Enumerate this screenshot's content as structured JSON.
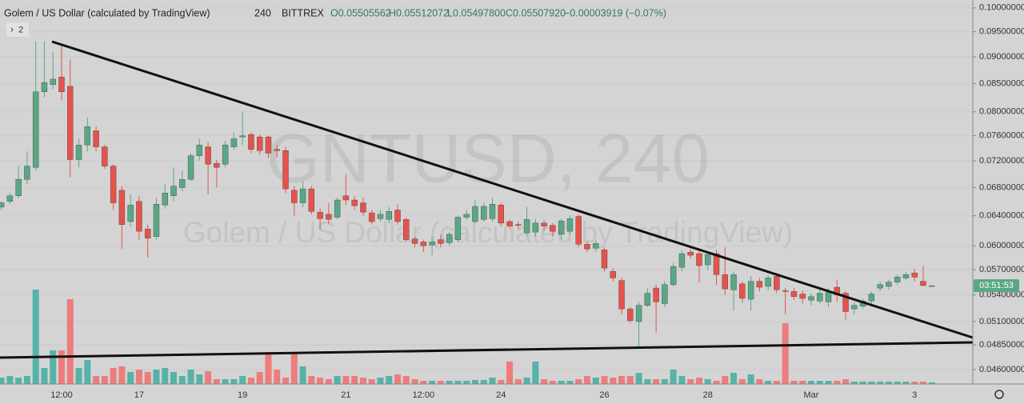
{
  "chart_data": {
    "type": "candlestick",
    "title": "Golem / US Dollar (calculated by TradingView)",
    "interval": "240",
    "exchange": "BITTREX",
    "ohlc_labels": [
      "O0.05505562",
      "H0.05512072",
      "L0.05497800",
      "C0.05507920"
    ],
    "change": "−0.00003919 (−0.07%)",
    "indicator_count": "2",
    "watermark": "GNTUSD, 240",
    "countdown": "03:51:53",
    "log_scale": true,
    "grid": true,
    "up_color": "#5aa785",
    "down_color": "#e5534b",
    "volume_up_color": "#55b3a8",
    "volume_down_color": "#ee7c7c",
    "ylim": [
      0.0446,
      0.1017
    ],
    "yticks": [
      {
        "value": 0.1,
        "label": "0.10000000"
      },
      {
        "value": 0.095,
        "label": "0.09500000"
      },
      {
        "value": 0.09,
        "label": "0.09000000"
      },
      {
        "value": 0.085,
        "label": "0.08500000"
      },
      {
        "value": 0.08,
        "label": "0.08000000"
      },
      {
        "value": 0.076,
        "label": "0.07600000"
      },
      {
        "value": 0.072,
        "label": "0.07200000"
      },
      {
        "value": 0.068,
        "label": "0.06800000"
      },
      {
        "value": 0.064,
        "label": "0.06400000"
      },
      {
        "value": 0.06,
        "label": "0.06000000"
      },
      {
        "value": 0.057,
        "label": "0.05700000"
      },
      {
        "value": 0.054,
        "label": "0.05400000"
      },
      {
        "value": 0.051,
        "label": "0.05100000"
      },
      {
        "value": 0.0485,
        "label": "0.04850000"
      },
      {
        "value": 0.046,
        "label": "0.04600000"
      }
    ],
    "categories": [
      null,
      null,
      null,
      null,
      null,
      null,
      null,
      "12:00",
      null,
      null,
      null,
      null,
      null,
      null,
      null,
      null,
      "17",
      null,
      null,
      null,
      null,
      null,
      null,
      null,
      null,
      null,
      null,
      null,
      "19",
      null,
      null,
      null,
      null,
      null,
      null,
      null,
      null,
      null,
      null,
      null,
      "21",
      null,
      null,
      null,
      null,
      null,
      null,
      null,
      null,
      "12:00",
      null,
      null,
      null,
      null,
      null,
      null,
      null,
      null,
      "24",
      null,
      null,
      null,
      null,
      null,
      null,
      null,
      null,
      null,
      null,
      null,
      "26",
      null,
      null,
      null,
      null,
      null,
      null,
      null,
      null,
      null,
      null,
      null,
      "28",
      null,
      null,
      null,
      null,
      null,
      null,
      null,
      null,
      null,
      null,
      null,
      "Mar",
      null,
      null,
      null,
      null,
      null,
      null,
      null,
      null,
      null,
      null,
      null,
      "3",
      null,
      null
    ],
    "open": [
      0.0652,
      0.066,
      0.0668,
      0.0692,
      0.071,
      0.0835,
      0.0848,
      0.0862,
      0.0845,
      0.0722,
      0.0745,
      0.0768,
      0.0742,
      0.0712,
      0.0676,
      0.0632,
      0.066,
      0.0622,
      0.0612,
      0.0655,
      0.0668,
      0.068,
      0.0692,
      0.0728,
      0.0742,
      0.0716,
      0.0715,
      0.0742,
      0.0758,
      0.0762,
      0.0758,
      0.0758,
      0.0738,
      0.0736,
      0.0676,
      0.0658,
      0.0678,
      0.0645,
      0.0642,
      0.0638,
      0.0668,
      0.0662,
      0.0658,
      0.0644,
      0.0636,
      0.0635,
      0.0648,
      0.0635,
      0.0609,
      0.0605,
      0.0601,
      0.0608,
      0.0604,
      0.0608,
      0.0638,
      0.0632,
      0.0635,
      0.0636,
      0.0655,
      0.0632,
      0.0628,
      0.0617,
      0.0618,
      0.063,
      0.0627,
      0.0615,
      0.0619,
      0.0639,
      0.0602,
      0.0597,
      0.0595,
      0.0568,
      0.0557,
      0.0524,
      0.051,
      0.0528,
      0.0548,
      0.053,
      0.0552,
      0.0573,
      0.0592,
      0.059,
      0.0576,
      0.059,
      0.0564,
      0.0546,
      0.0553,
      0.0535,
      0.0556,
      0.055,
      0.0562,
      0.0545,
      0.0544,
      0.0541,
      0.0534,
      0.0533,
      0.0532,
      0.0549,
      0.0542,
      0.0524,
      0.0527,
      0.0533,
      0.0548,
      0.055,
      0.0555,
      0.056,
      0.0566,
      0.0556,
      0.05505562
    ],
    "high": [
      0.066,
      0.0672,
      0.0712,
      0.0735,
      0.093,
      0.093,
      0.091,
      0.0925,
      0.0895,
      0.0755,
      0.079,
      0.0775,
      0.0745,
      0.0715,
      0.0682,
      0.067,
      0.0668,
      0.0628,
      0.0665,
      0.0685,
      0.071,
      0.0705,
      0.0732,
      0.0755,
      0.075,
      0.0722,
      0.0752,
      0.0765,
      0.08,
      0.0765,
      0.0762,
      0.076,
      0.0745,
      0.0742,
      0.0682,
      0.069,
      0.0682,
      0.065,
      0.0658,
      0.0665,
      0.07,
      0.0668,
      0.0665,
      0.0648,
      0.0648,
      0.0652,
      0.0656,
      0.0638,
      0.0612,
      0.0608,
      0.0612,
      0.0615,
      0.0618,
      0.064,
      0.0648,
      0.0662,
      0.0658,
      0.0665,
      0.0658,
      0.0635,
      0.0632,
      0.0652,
      0.0636,
      0.0634,
      0.063,
      0.0636,
      0.064,
      0.0642,
      0.0606,
      0.0607,
      0.0598,
      0.0572,
      0.056,
      0.0526,
      0.0532,
      0.0548,
      0.0552,
      0.0556,
      0.0578,
      0.0594,
      0.0596,
      0.0594,
      0.0592,
      0.0595,
      0.0598,
      0.0568,
      0.0556,
      0.0562,
      0.056,
      0.0564,
      0.0566,
      0.0548,
      0.0548,
      0.0545,
      0.0542,
      0.0546,
      0.0548,
      0.0558,
      0.0544,
      0.0532,
      0.0536,
      0.0544,
      0.0556,
      0.0558,
      0.0564,
      0.0567,
      0.0571,
      0.0575,
      0.05512072
    ],
    "low": [
      0.0648,
      0.0656,
      0.0665,
      0.0685,
      0.0705,
      0.0825,
      0.084,
      0.082,
      0.0695,
      0.071,
      0.0735,
      0.0735,
      0.0708,
      0.0648,
      0.0596,
      0.0625,
      0.0608,
      0.0585,
      0.0608,
      0.065,
      0.066,
      0.0675,
      0.069,
      0.072,
      0.067,
      0.068,
      0.071,
      0.0738,
      0.0745,
      0.0732,
      0.073,
      0.0725,
      0.0725,
      0.0672,
      0.064,
      0.0652,
      0.0642,
      0.0622,
      0.0628,
      0.0635,
      0.0655,
      0.0648,
      0.064,
      0.0628,
      0.0632,
      0.063,
      0.0628,
      0.0605,
      0.0598,
      0.0592,
      0.0588,
      0.0598,
      0.06,
      0.0605,
      0.0634,
      0.063,
      0.0632,
      0.0632,
      0.0625,
      0.0622,
      0.0622,
      0.0612,
      0.0612,
      0.062,
      0.0612,
      0.0608,
      0.0615,
      0.0598,
      0.0592,
      0.0593,
      0.0568,
      0.0556,
      0.0518,
      0.0508,
      0.0482,
      0.0526,
      0.0498,
      0.0526,
      0.055,
      0.0568,
      0.0584,
      0.0555,
      0.057,
      0.0552,
      0.054,
      0.0522,
      0.0531,
      0.0522,
      0.0544,
      0.0545,
      0.0542,
      0.0518,
      0.0534,
      0.053,
      0.0528,
      0.053,
      0.0526,
      0.0532,
      0.0512,
      0.0518,
      0.0524,
      0.053,
      0.0544,
      0.0546,
      0.0552,
      0.0557,
      0.0556,
      0.055,
      0.054978
    ],
    "close": [
      0.0658,
      0.0668,
      0.0692,
      0.0712,
      0.0835,
      0.0852,
      0.0858,
      0.0835,
      0.0722,
      0.0745,
      0.0775,
      0.0742,
      0.0712,
      0.0658,
      0.0628,
      0.0655,
      0.0619,
      0.061,
      0.0656,
      0.0672,
      0.0682,
      0.0692,
      0.0728,
      0.0745,
      0.0715,
      0.071,
      0.0745,
      0.0755,
      0.076,
      0.0738,
      0.0736,
      0.0732,
      0.0736,
      0.0678,
      0.0658,
      0.0678,
      0.0646,
      0.0636,
      0.0635,
      0.0662,
      0.0662,
      0.0654,
      0.0645,
      0.0632,
      0.0642,
      0.0646,
      0.0632,
      0.0608,
      0.0603,
      0.06,
      0.0605,
      0.0603,
      0.0615,
      0.0638,
      0.0642,
      0.0653,
      0.0653,
      0.0656,
      0.063,
      0.0626,
      0.0627,
      0.0635,
      0.063,
      0.0626,
      0.0619,
      0.0633,
      0.0636,
      0.0602,
      0.0596,
      0.0603,
      0.0572,
      0.056,
      0.0524,
      0.0511,
      0.0528,
      0.0542,
      0.0532,
      0.0552,
      0.0574,
      0.059,
      0.0588,
      0.0575,
      0.0589,
      0.0564,
      0.0547,
      0.0564,
      0.0536,
      0.0556,
      0.0549,
      0.056,
      0.0546,
      0.0544,
      0.0538,
      0.0536,
      0.0538,
      0.0542,
      0.0543,
      0.054,
      0.0521,
      0.0528,
      0.0533,
      0.0541,
      0.0552,
      0.0555,
      0.0561,
      0.0564,
      0.0561,
      0.0551,
      0.0550792
    ],
    "volume": [
      8,
      10,
      8,
      10,
      118,
      20,
      42,
      42,
      106,
      20,
      30,
      10,
      10,
      20,
      22,
      15,
      18,
      15,
      18,
      20,
      15,
      10,
      18,
      12,
      16,
      6,
      6,
      6,
      10,
      8,
      15,
      40,
      18,
      8,
      40,
      22,
      10,
      8,
      6,
      10,
      10,
      10,
      8,
      6,
      8,
      10,
      12,
      10,
      6,
      4,
      4,
      4,
      4,
      4,
      4,
      5,
      5,
      8,
      5,
      28,
      6,
      8,
      28,
      6,
      4,
      4,
      4,
      6,
      10,
      8,
      10,
      8,
      10,
      10,
      14,
      6,
      6,
      6,
      18,
      10,
      6,
      8,
      6,
      4,
      10,
      14,
      6,
      12,
      6,
      4,
      4,
      76,
      4,
      4,
      4,
      4,
      4,
      4,
      6,
      3,
      3,
      3,
      3,
      3,
      3,
      3,
      3,
      3,
      2
    ]
  }
}
